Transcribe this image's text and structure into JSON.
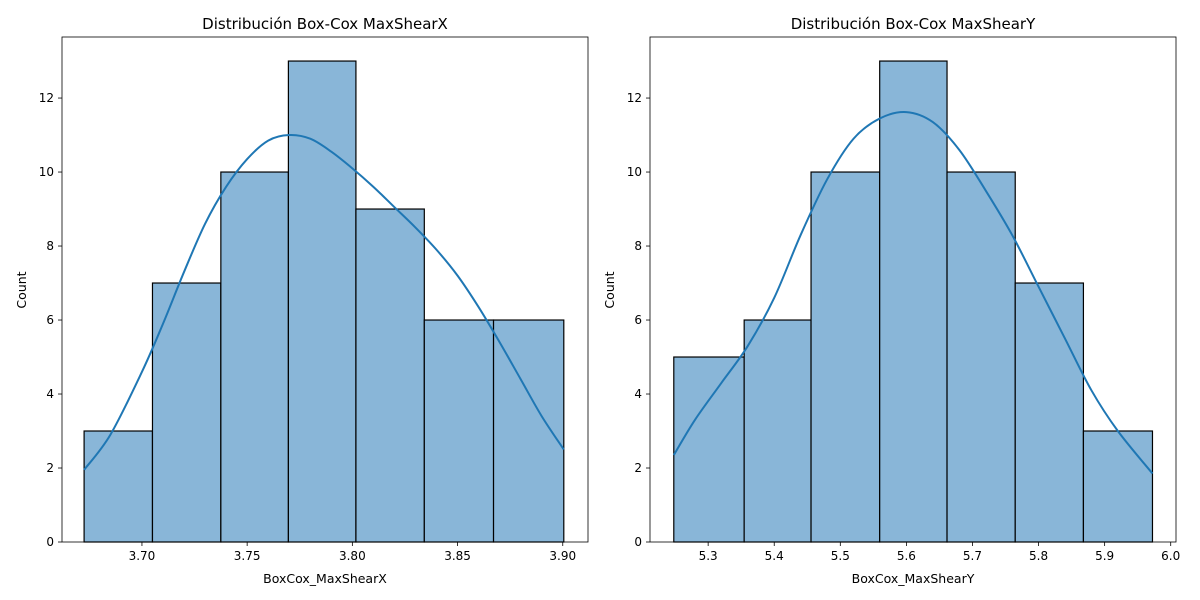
{
  "chart_data": [
    {
      "type": "histogram",
      "title": "Distribución Box-Cox MaxShearX",
      "xlabel": "BoxCox_MaxShearX",
      "ylabel": "Count",
      "xlim": [
        3.662,
        3.912
      ],
      "ylim": [
        0,
        13.65
      ],
      "xticks": [
        3.7,
        3.75,
        3.8,
        3.85,
        3.9
      ],
      "xtick_labels": [
        "3.70",
        "3.75",
        "3.80",
        "3.85",
        "3.90"
      ],
      "yticks": [
        0,
        2,
        4,
        6,
        8,
        10,
        12
      ],
      "bin_edges": [
        3.6725,
        3.705,
        3.7375,
        3.7696,
        3.8017,
        3.8342,
        3.8671,
        3.9005
      ],
      "counts": [
        3,
        7,
        10,
        13,
        9,
        6,
        6
      ],
      "kde": {
        "x": [
          3.6725,
          3.685,
          3.7,
          3.71,
          3.72,
          3.73,
          3.74,
          3.75,
          3.76,
          3.77,
          3.78,
          3.79,
          3.8,
          3.81,
          3.82,
          3.83,
          3.84,
          3.85,
          3.86,
          3.87,
          3.88,
          3.89,
          3.9005
        ],
        "y": [
          1.95,
          2.9,
          4.6,
          5.9,
          7.3,
          8.6,
          9.6,
          10.35,
          10.85,
          11.0,
          10.9,
          10.55,
          10.1,
          9.6,
          9.05,
          8.5,
          7.9,
          7.2,
          6.35,
          5.4,
          4.4,
          3.4,
          2.5
        ]
      },
      "colors": {
        "bar": "#89b6d8",
        "edge": "#000000",
        "kde": "#1f77b4"
      }
    },
    {
      "type": "histogram",
      "title": "Distribución Box-Cox MaxShearY",
      "xlabel": "BoxCox_MaxShearY",
      "ylabel": "Count",
      "xlim": [
        5.212,
        6.008
      ],
      "ylim": [
        0,
        13.65
      ],
      "xticks": [
        5.3,
        5.4,
        5.5,
        5.6,
        5.7,
        5.8,
        5.9,
        6.0
      ],
      "xtick_labels": [
        "5.3",
        "5.4",
        "5.5",
        "5.6",
        "5.7",
        "5.8",
        "5.9",
        "6.0"
      ],
      "yticks": [
        0,
        2,
        4,
        6,
        8,
        10,
        12
      ],
      "bin_edges": [
        5.248,
        5.3545,
        5.4557,
        5.5596,
        5.6615,
        5.7647,
        5.8679,
        5.9724
      ],
      "counts": [
        5,
        6,
        10,
        13,
        10,
        7,
        3
      ],
      "kde": {
        "x": [
          5.248,
          5.28,
          5.32,
          5.36,
          5.4,
          5.44,
          5.48,
          5.52,
          5.56,
          5.6,
          5.64,
          5.68,
          5.72,
          5.76,
          5.8,
          5.84,
          5.88,
          5.92,
          5.9724
        ],
        "y": [
          2.35,
          3.3,
          4.3,
          5.3,
          6.6,
          8.3,
          9.8,
          10.9,
          11.45,
          11.62,
          11.35,
          10.6,
          9.5,
          8.3,
          6.9,
          5.5,
          4.1,
          3.0,
          1.85
        ]
      },
      "colors": {
        "bar": "#89b6d8",
        "edge": "#000000",
        "kde": "#1f77b4"
      }
    }
  ]
}
